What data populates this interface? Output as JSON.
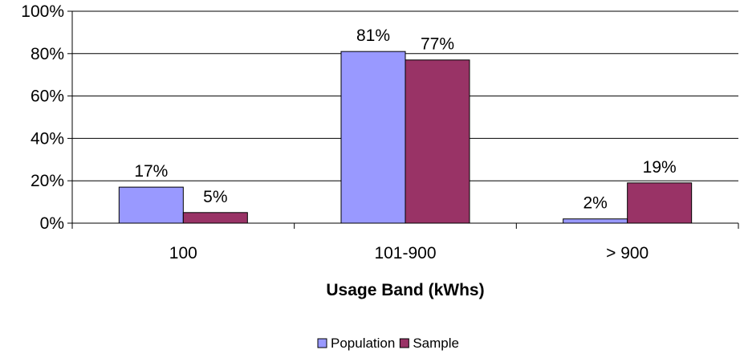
{
  "chart_data": {
    "type": "bar",
    "title": "",
    "xlabel": "Usage Band (kWhs)",
    "ylabel": "",
    "categories": [
      "100",
      "101-900",
      "> 900"
    ],
    "series": [
      {
        "name": "Population",
        "values": [
          17,
          81,
          2
        ],
        "labels": [
          "17%",
          "81%",
          "2%"
        ],
        "color": "#9999ff"
      },
      {
        "name": "Sample",
        "values": [
          5,
          77,
          19
        ],
        "labels": [
          "5%",
          "77%",
          "19%"
        ],
        "color": "#993366"
      }
    ],
    "ylim": [
      0,
      100
    ],
    "yticks": [
      0,
      20,
      40,
      60,
      80,
      100
    ],
    "ytick_labels": [
      "0%",
      "20%",
      "40%",
      "60%",
      "80%",
      "100%"
    ],
    "grid": true,
    "legend_position": "bottom"
  }
}
